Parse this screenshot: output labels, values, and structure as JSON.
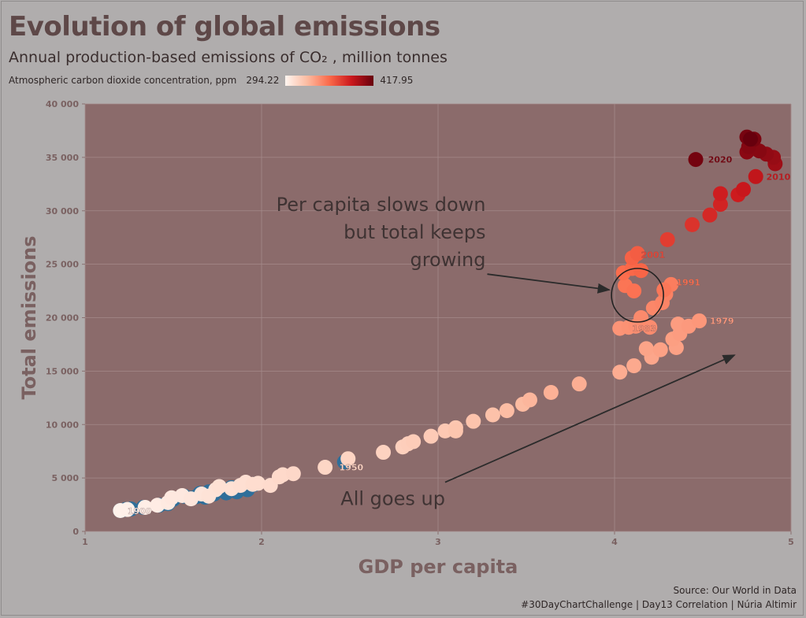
{
  "header": {
    "title": "Evolution of global emissions",
    "subtitle": "Annual production-based emissions of CO₂ , million tonnes"
  },
  "legend": {
    "label": "Atmospheric carbon dioxide concentration, ppm",
    "min_label": "294.22",
    "max_label": "417.95",
    "min": 294.22,
    "max": 417.95,
    "colors": [
      "#fff5f0",
      "#fcbba1",
      "#fb6a4a",
      "#cb181d",
      "#67000d"
    ],
    "no_data_color": "#2f6f9a"
  },
  "footer": {
    "source": "Source: Our World in Data",
    "credit": "#30DayChartChallenge | Day13 Correlation | Núria Altimir"
  },
  "colors": {
    "page_background": "#b0adad",
    "panel_background": "#8b6b6b",
    "axis_text": "#7a6161"
  },
  "chart_data": {
    "type": "scatter",
    "xlabel": "GDP per capita",
    "ylabel": "Total emissions",
    "xlim": [
      1,
      5
    ],
    "ylim": [
      0,
      40000
    ],
    "x_ticks": [
      "1",
      "2",
      "3",
      "4",
      "5"
    ],
    "y_ticks": [
      "0",
      "5 000",
      "10 000",
      "15 000",
      "20 000",
      "25 000",
      "30 000",
      "35 000",
      "40 000"
    ],
    "grid": true,
    "legend_position": "top-left",
    "color_variable": "Atmospheric carbon dioxide concentration, ppm",
    "series": [
      {
        "color_by": "ppm",
        "points": [
          {
            "x": 1.2,
            "y": 1950,
            "ppm": null
          },
          {
            "x": 1.23,
            "y": 2050,
            "ppm": null
          },
          {
            "x": 1.26,
            "y": 2100,
            "ppm": null
          },
          {
            "x": 1.33,
            "y": 2250,
            "ppm": null
          },
          {
            "x": 1.42,
            "y": 2450,
            "ppm": null
          },
          {
            "x": 1.47,
            "y": 2600,
            "ppm": null
          },
          {
            "x": 1.5,
            "y": 3000,
            "ppm": null
          },
          {
            "x": 1.56,
            "y": 3300,
            "ppm": null
          },
          {
            "x": 1.6,
            "y": 3100,
            "ppm": null
          },
          {
            "x": 1.63,
            "y": 3250,
            "ppm": null
          },
          {
            "x": 1.65,
            "y": 3550,
            "ppm": null
          },
          {
            "x": 1.68,
            "y": 3200,
            "ppm": null
          },
          {
            "x": 1.7,
            "y": 3700,
            "ppm": null
          },
          {
            "x": 1.73,
            "y": 3500,
            "ppm": null
          },
          {
            "x": 1.77,
            "y": 3900,
            "ppm": null
          },
          {
            "x": 1.8,
            "y": 3600,
            "ppm": null
          },
          {
            "x": 1.83,
            "y": 4100,
            "ppm": null
          },
          {
            "x": 1.86,
            "y": 3700,
            "ppm": null
          },
          {
            "x": 1.9,
            "y": 4300,
            "ppm": null
          },
          {
            "x": 1.92,
            "y": 3900,
            "ppm": null
          },
          {
            "x": 1.96,
            "y": 4400,
            "ppm": null
          },
          {
            "x": 2.47,
            "y": 6500,
            "ppm": null
          },
          {
            "x": 1.2,
            "y": 1950,
            "ppm": 296
          },
          {
            "x": 1.24,
            "y": 2050,
            "ppm": 297
          },
          {
            "x": 1.34,
            "y": 2250,
            "ppm": 298
          },
          {
            "x": 1.41,
            "y": 2450,
            "ppm": 299
          },
          {
            "x": 1.47,
            "y": 2700,
            "ppm": 300
          },
          {
            "x": 1.49,
            "y": 3150,
            "ppm": 301
          },
          {
            "x": 1.55,
            "y": 3350,
            "ppm": 301
          },
          {
            "x": 1.6,
            "y": 3050,
            "ppm": 302
          },
          {
            "x": 1.66,
            "y": 3500,
            "ppm": 303
          },
          {
            "x": 1.7,
            "y": 3300,
            "ppm": 304
          },
          {
            "x": 1.74,
            "y": 3900,
            "ppm": 304
          },
          {
            "x": 1.76,
            "y": 4200,
            "ppm": 305
          },
          {
            "x": 1.83,
            "y": 4000,
            "ppm": 305
          },
          {
            "x": 1.88,
            "y": 4300,
            "ppm": 306
          },
          {
            "x": 1.91,
            "y": 4600,
            "ppm": 306
          },
          {
            "x": 1.95,
            "y": 4400,
            "ppm": 307
          },
          {
            "x": 1.98,
            "y": 4500,
            "ppm": 307
          },
          {
            "x": 2.05,
            "y": 4300,
            "ppm": 308
          },
          {
            "x": 2.1,
            "y": 5100,
            "ppm": 309
          },
          {
            "x": 2.12,
            "y": 5300,
            "ppm": 309
          },
          {
            "x": 2.18,
            "y": 5400,
            "ppm": 310
          },
          {
            "x": 2.36,
            "y": 6000,
            "ppm": 311
          },
          {
            "x": 2.49,
            "y": 6800,
            "ppm": 312
          },
          {
            "x": 2.69,
            "y": 7400,
            "ppm": 313
          },
          {
            "x": 2.8,
            "y": 7900,
            "ppm": 314
          },
          {
            "x": 2.83,
            "y": 8200,
            "ppm": 315
          },
          {
            "x": 2.86,
            "y": 8400,
            "ppm": 316
          },
          {
            "x": 2.96,
            "y": 8900,
            "ppm": 317
          },
          {
            "x": 3.04,
            "y": 9400,
            "ppm": 318
          },
          {
            "x": 3.1,
            "y": 9700,
            "ppm": 319
          },
          {
            "x": 3.1,
            "y": 9400,
            "ppm": 320
          },
          {
            "x": 3.2,
            "y": 10300,
            "ppm": 321
          },
          {
            "x": 3.31,
            "y": 10900,
            "ppm": 322
          },
          {
            "x": 3.39,
            "y": 11300,
            "ppm": 324
          },
          {
            "x": 3.48,
            "y": 11900,
            "ppm": 325
          },
          {
            "x": 3.52,
            "y": 12300,
            "ppm": 327
          },
          {
            "x": 3.64,
            "y": 13000,
            "ppm": 329
          },
          {
            "x": 3.8,
            "y": 13800,
            "ppm": 330
          },
          {
            "x": 4.03,
            "y": 14900,
            "ppm": 331
          },
          {
            "x": 4.11,
            "y": 15500,
            "ppm": 332
          },
          {
            "x": 4.21,
            "y": 16300,
            "ppm": 333
          },
          {
            "x": 4.18,
            "y": 17100,
            "ppm": 334
          },
          {
            "x": 4.26,
            "y": 17000,
            "ppm": 335
          },
          {
            "x": 4.35,
            "y": 17200,
            "ppm": 335
          },
          {
            "x": 4.33,
            "y": 18000,
            "ppm": 336
          },
          {
            "x": 4.37,
            "y": 18500,
            "ppm": 337
          },
          {
            "x": 4.36,
            "y": 19400,
            "ppm": 337
          },
          {
            "x": 4.42,
            "y": 19200,
            "ppm": 338
          },
          {
            "x": 4.48,
            "y": 19700,
            "ppm": 339
          },
          {
            "x": 4.03,
            "y": 19000,
            "ppm": 340
          },
          {
            "x": 4.08,
            "y": 19100,
            "ppm": 341
          },
          {
            "x": 4.12,
            "y": 19200,
            "ppm": 342
          },
          {
            "x": 4.2,
            "y": 19100,
            "ppm": 343
          },
          {
            "x": 4.15,
            "y": 20000,
            "ppm": 344
          },
          {
            "x": 4.22,
            "y": 20900,
            "ppm": 345
          },
          {
            "x": 4.27,
            "y": 21400,
            "ppm": 346
          },
          {
            "x": 4.29,
            "y": 22200,
            "ppm": 347
          },
          {
            "x": 4.32,
            "y": 23100,
            "ppm": 349
          },
          {
            "x": 4.28,
            "y": 22600,
            "ppm": 351
          },
          {
            "x": 4.06,
            "y": 23000,
            "ppm": 352
          },
          {
            "x": 4.11,
            "y": 22500,
            "ppm": 353
          },
          {
            "x": 4.05,
            "y": 24200,
            "ppm": 355
          },
          {
            "x": 4.1,
            "y": 24600,
            "ppm": 357
          },
          {
            "x": 4.15,
            "y": 24400,
            "ppm": 358
          },
          {
            "x": 4.1,
            "y": 25600,
            "ppm": 359
          },
          {
            "x": 4.13,
            "y": 26000,
            "ppm": 361
          },
          {
            "x": 4.3,
            "y": 27300,
            "ppm": 373
          },
          {
            "x": 4.44,
            "y": 28700,
            "ppm": 377
          },
          {
            "x": 4.54,
            "y": 29600,
            "ppm": 381
          },
          {
            "x": 4.6,
            "y": 30600,
            "ppm": 383
          },
          {
            "x": 4.6,
            "y": 31600,
            "ppm": 385
          },
          {
            "x": 4.7,
            "y": 31500,
            "ppm": 386
          },
          {
            "x": 4.73,
            "y": 32000,
            "ppm": 388
          },
          {
            "x": 4.8,
            "y": 33200,
            "ppm": 390
          },
          {
            "x": 4.91,
            "y": 34400,
            "ppm": 401
          },
          {
            "x": 4.9,
            "y": 35000,
            "ppm": 403
          },
          {
            "x": 4.86,
            "y": 35300,
            "ppm": 405
          },
          {
            "x": 4.75,
            "y": 35500,
            "ppm": 407
          },
          {
            "x": 4.82,
            "y": 35600,
            "ppm": 408
          },
          {
            "x": 4.76,
            "y": 36000,
            "ppm": 409
          },
          {
            "x": 4.79,
            "y": 36700,
            "ppm": 412
          },
          {
            "x": 4.75,
            "y": 36900,
            "ppm": 413
          },
          {
            "x": 4.46,
            "y": 34800,
            "ppm": 414
          },
          {
            "x": 4.77,
            "y": 36700,
            "ppm": 418
          }
        ]
      }
    ],
    "point_labels": [
      {
        "text": "1900",
        "x": 1.24,
        "y": 1900,
        "ppm": 296
      },
      {
        "text": "1950",
        "x": 2.44,
        "y": 6000,
        "ppm": 311
      },
      {
        "text": "1979",
        "x": 4.54,
        "y": 19700,
        "ppm": 338
      },
      {
        "text": "1983",
        "x": 4.1,
        "y": 19000,
        "ppm": 342
      },
      {
        "text": "1991",
        "x": 4.35,
        "y": 23300,
        "ppm": 355
      },
      {
        "text": "2001",
        "x": 4.15,
        "y": 25900,
        "ppm": 370
      },
      {
        "text": "2010",
        "x": 4.86,
        "y": 33200,
        "ppm": 390
      },
      {
        "text": "2020",
        "x": 4.53,
        "y": 34800,
        "ppm": 414
      }
    ],
    "annotations": [
      {
        "lines": [
          "Per capita slows down",
          "but total keeps",
          "growing"
        ],
        "anchor_x": 3.27,
        "anchor_y": 25400,
        "arrow_to": [
          3.97,
          22600
        ],
        "ellipse_center": [
          4.13,
          22100
        ]
      },
      {
        "lines": [
          "All goes up"
        ],
        "anchor_x": 3.04,
        "anchor_y": 3200,
        "arrow_from": [
          3.04,
          4600
        ],
        "arrow_to": [
          4.68,
          16500
        ]
      }
    ]
  }
}
